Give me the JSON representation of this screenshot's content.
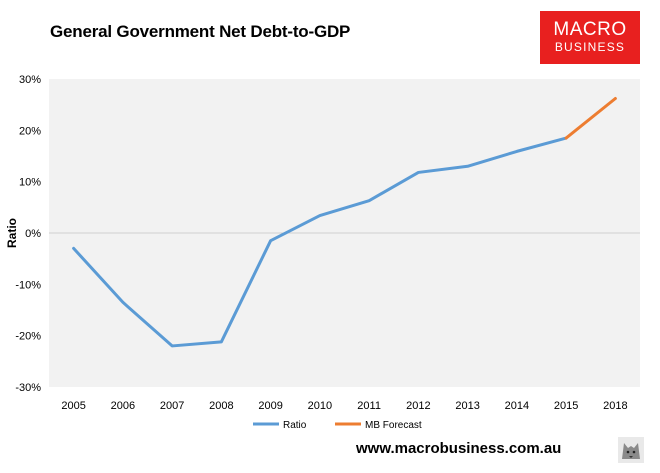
{
  "header": {
    "title": "General Government Net Debt-to-GDP",
    "logo_line1": "MACRO",
    "logo_line2": "BUSINESS"
  },
  "footer": {
    "url": "www.macrobusiness.com.au"
  },
  "colors": {
    "ratio": "#5b9bd5",
    "forecast": "#ed7d31",
    "plot_bg": "#f2f2f2",
    "brand_red": "#e8201f"
  },
  "chart_data": {
    "type": "line",
    "title": "General Government Net Debt-to-GDP",
    "xlabel": "",
    "ylabel": "Ratio",
    "categories": [
      "2005",
      "2006",
      "2007",
      "2008",
      "2009",
      "2010",
      "2011",
      "2012",
      "2013",
      "2014",
      "2015",
      "2018"
    ],
    "y_ticks": [
      "30%",
      "20%",
      "10%",
      "0%",
      "-10%",
      "-20%",
      "-30%"
    ],
    "ylim": [
      -30,
      30
    ],
    "grid": false,
    "legend_position": "bottom",
    "series": [
      {
        "name": "Ratio",
        "values": [
          -3,
          -13.5,
          -22,
          -21.2,
          -1.5,
          3.4,
          6.3,
          11.8,
          13,
          15.9,
          18.5,
          null
        ]
      },
      {
        "name": "MB Forecast",
        "values": [
          null,
          null,
          null,
          null,
          null,
          null,
          null,
          null,
          null,
          null,
          18.5,
          26.2
        ]
      }
    ]
  }
}
